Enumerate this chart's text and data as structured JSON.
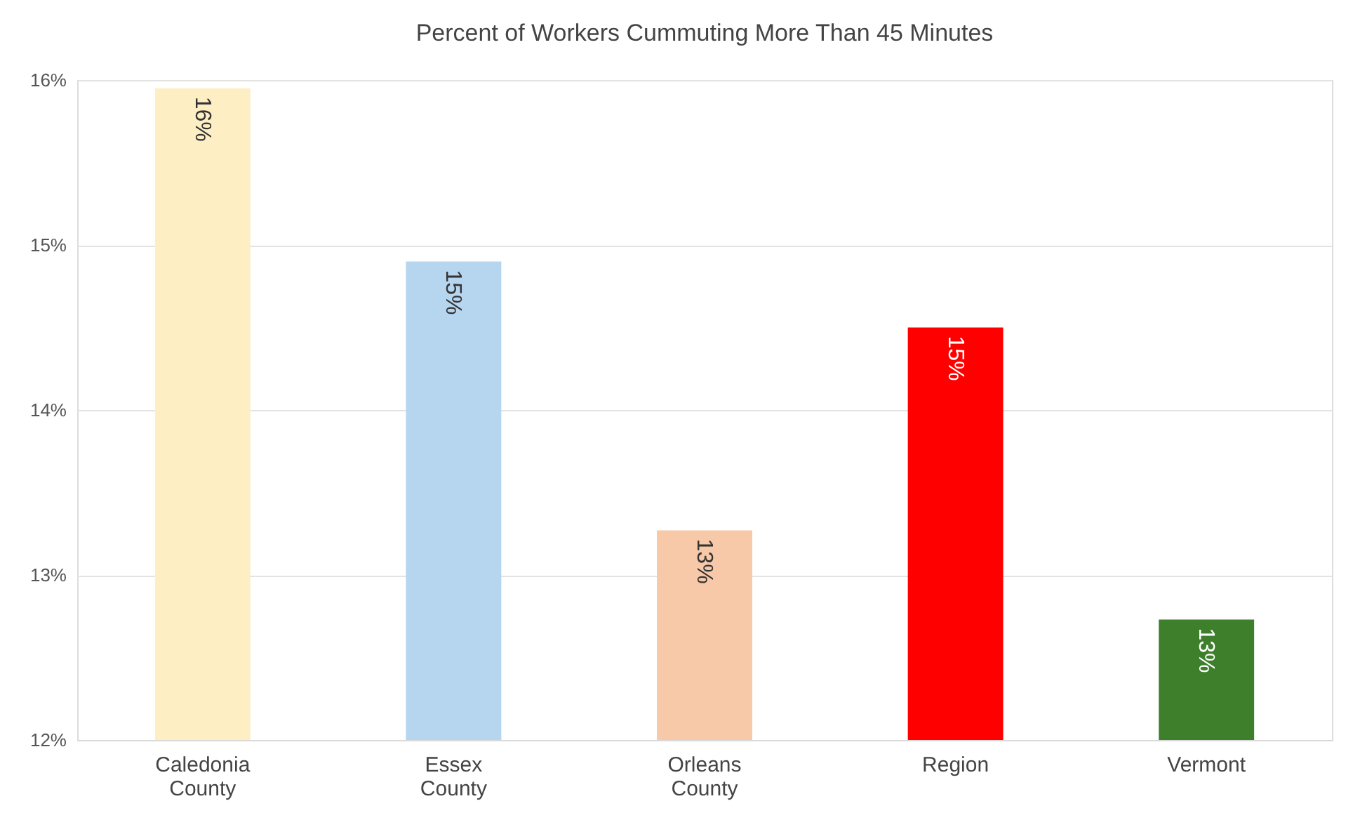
{
  "chart_data": {
    "type": "bar",
    "title": "Percent of Workers Cummuting More Than 45 Minutes",
    "categories": [
      "Caledonia County",
      "Essex County",
      "Orleans County",
      "Region",
      "Vermont"
    ],
    "values": [
      15.95,
      14.9,
      13.27,
      14.5,
      12.73
    ],
    "colors": [
      "#fdeec4",
      "#b6d5ee",
      "#f7c9a8",
      "#ff0000",
      "#3e7f2b"
    ],
    "value_labels": [
      "16%",
      "15%",
      "13%",
      "15%",
      "13%"
    ],
    "ylim": [
      12,
      16
    ],
    "yticks": [
      {
        "value": 12,
        "label": "12%"
      },
      {
        "value": 13,
        "label": "13%"
      },
      {
        "value": 14,
        "label": "14%"
      },
      {
        "value": 15,
        "label": "15%"
      },
      {
        "value": 16,
        "label": "16%"
      }
    ],
    "grid": "y"
  }
}
